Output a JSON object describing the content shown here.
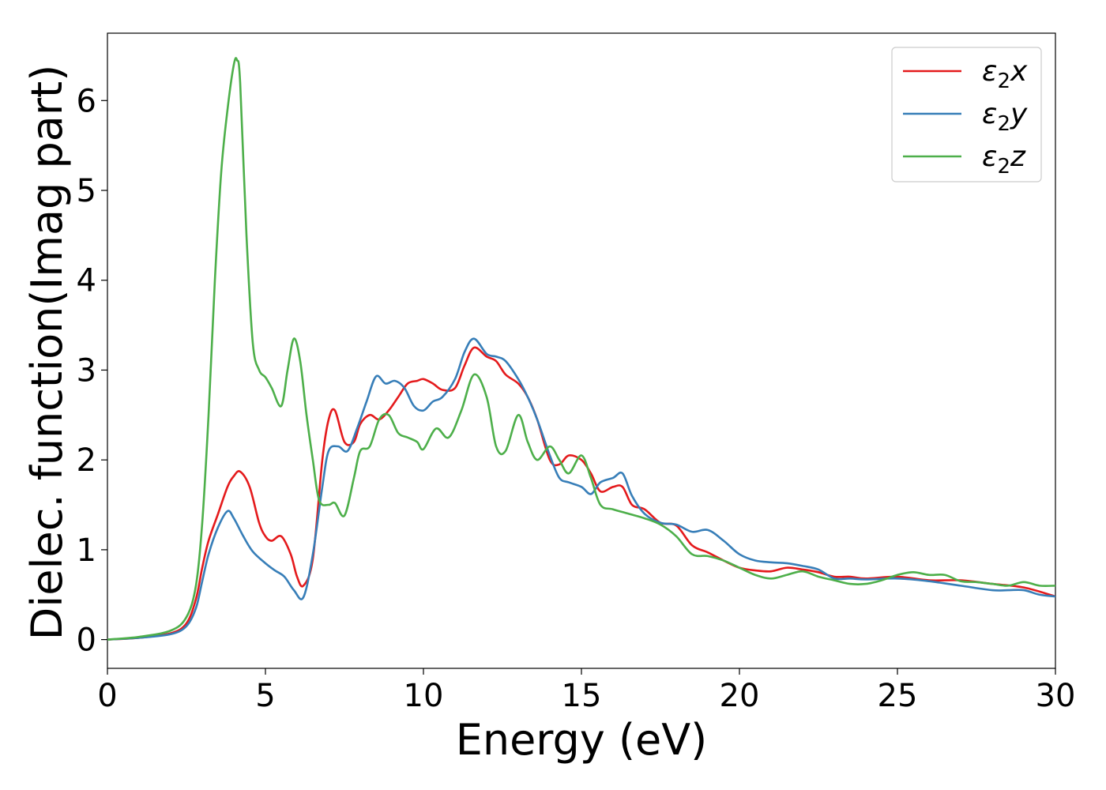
{
  "chart_data": {
    "type": "line",
    "title": "",
    "xlabel": "Energy (eV)",
    "ylabel": "Dielec. function(Imag part)",
    "xlim": [
      0,
      30
    ],
    "ylim": [
      -0.32,
      6.75
    ],
    "xticks": [
      0,
      5,
      10,
      15,
      20,
      25,
      30
    ],
    "yticks": [
      0,
      1,
      2,
      3,
      4,
      5,
      6
    ],
    "grid": false,
    "legend_position": "top-right",
    "series": [
      {
        "name": "ε2x",
        "legend_base": "ε",
        "legend_sub": "2",
        "legend_suffix": "x",
        "color": "#e41a1c",
        "x": [
          0,
          1,
          2,
          2.5,
          2.8,
          3.0,
          3.2,
          3.5,
          3.8,
          4.0,
          4.2,
          4.5,
          4.8,
          5.0,
          5.2,
          5.5,
          5.8,
          6.0,
          6.2,
          6.5,
          6.8,
          7.0,
          7.2,
          7.5,
          7.8,
          8.0,
          8.3,
          8.6,
          8.9,
          9.2,
          9.5,
          9.8,
          10.0,
          10.3,
          10.6,
          11.0,
          11.3,
          11.6,
          12.0,
          12.3,
          12.6,
          13.0,
          13.3,
          13.6,
          14.0,
          14.3,
          14.6,
          15.0,
          15.3,
          15.6,
          16.0,
          16.3,
          16.6,
          17.0,
          17.5,
          18.0,
          18.5,
          19.0,
          19.5,
          20.0,
          20.5,
          21.0,
          21.5,
          22.0,
          22.5,
          23.0,
          23.5,
          24.0,
          25.0,
          26.0,
          27.0,
          28.0,
          29.0,
          30.0
        ],
        "y": [
          0.0,
          0.02,
          0.07,
          0.18,
          0.45,
          0.8,
          1.1,
          1.4,
          1.7,
          1.82,
          1.87,
          1.7,
          1.3,
          1.15,
          1.1,
          1.15,
          0.95,
          0.7,
          0.6,
          0.9,
          2.0,
          2.45,
          2.55,
          2.2,
          2.2,
          2.4,
          2.5,
          2.45,
          2.55,
          2.7,
          2.85,
          2.88,
          2.9,
          2.85,
          2.78,
          2.8,
          3.05,
          3.25,
          3.15,
          3.1,
          2.95,
          2.85,
          2.7,
          2.45,
          2.0,
          1.95,
          2.05,
          2.0,
          1.85,
          1.65,
          1.7,
          1.7,
          1.5,
          1.45,
          1.3,
          1.27,
          1.05,
          0.97,
          0.88,
          0.8,
          0.77,
          0.76,
          0.8,
          0.78,
          0.75,
          0.7,
          0.7,
          0.68,
          0.7,
          0.66,
          0.66,
          0.62,
          0.58,
          0.48
        ]
      },
      {
        "name": "ε2y",
        "legend_base": "ε",
        "legend_sub": "2",
        "legend_suffix": "y",
        "color": "#377eb8",
        "x": [
          0,
          1,
          2,
          2.5,
          2.8,
          3.0,
          3.2,
          3.5,
          3.8,
          4.0,
          4.3,
          4.6,
          5.0,
          5.3,
          5.6,
          5.9,
          6.2,
          6.5,
          6.8,
          7.0,
          7.3,
          7.6,
          7.9,
          8.2,
          8.5,
          8.8,
          9.1,
          9.4,
          9.7,
          10.0,
          10.3,
          10.6,
          11.0,
          11.3,
          11.6,
          12.0,
          12.3,
          12.6,
          13.0,
          13.3,
          13.6,
          14.0,
          14.3,
          14.6,
          15.0,
          15.3,
          15.6,
          16.0,
          16.3,
          16.6,
          17.0,
          17.5,
          18.0,
          18.5,
          19.0,
          19.5,
          20.0,
          20.5,
          21.0,
          21.5,
          22.0,
          22.5,
          23.0,
          23.5,
          24.0,
          25.0,
          26.0,
          27.0,
          28.0,
          28.5,
          29.0,
          29.5,
          30.0
        ],
        "y": [
          0.0,
          0.02,
          0.06,
          0.15,
          0.35,
          0.65,
          0.95,
          1.25,
          1.43,
          1.35,
          1.15,
          0.98,
          0.85,
          0.77,
          0.7,
          0.55,
          0.47,
          0.95,
          1.7,
          2.1,
          2.15,
          2.1,
          2.35,
          2.65,
          2.93,
          2.85,
          2.88,
          2.8,
          2.6,
          2.55,
          2.65,
          2.7,
          2.9,
          3.2,
          3.35,
          3.18,
          3.15,
          3.1,
          2.9,
          2.7,
          2.45,
          2.05,
          1.8,
          1.75,
          1.7,
          1.62,
          1.75,
          1.8,
          1.85,
          1.6,
          1.4,
          1.3,
          1.28,
          1.2,
          1.22,
          1.1,
          0.95,
          0.88,
          0.86,
          0.85,
          0.82,
          0.78,
          0.68,
          0.68,
          0.67,
          0.68,
          0.65,
          0.6,
          0.55,
          0.55,
          0.55,
          0.5,
          0.48
        ]
      },
      {
        "name": "ε2z",
        "legend_base": "ε",
        "legend_sub": "2",
        "legend_suffix": "z",
        "color": "#4daf4a",
        "x": [
          0,
          1,
          2,
          2.5,
          2.8,
          3.0,
          3.2,
          3.4,
          3.6,
          3.8,
          4.0,
          4.1,
          4.2,
          4.4,
          4.6,
          4.8,
          5.0,
          5.2,
          5.5,
          5.7,
          5.9,
          6.1,
          6.3,
          6.5,
          6.7,
          7.0,
          7.2,
          7.5,
          7.8,
          8.0,
          8.3,
          8.6,
          8.9,
          9.2,
          9.5,
          9.8,
          10.0,
          10.4,
          10.8,
          11.2,
          11.6,
          12.0,
          12.3,
          12.6,
          13.0,
          13.3,
          13.6,
          14.0,
          14.3,
          14.6,
          15.0,
          15.3,
          15.6,
          16.0,
          16.5,
          17.0,
          17.5,
          18.0,
          18.5,
          19.0,
          19.5,
          20.0,
          20.5,
          21.0,
          21.5,
          22.0,
          22.5,
          23.0,
          23.5,
          24.0,
          24.5,
          25.0,
          25.5,
          26.0,
          26.5,
          27.0,
          27.5,
          28.0,
          28.5,
          29.0,
          29.5,
          30.0
        ],
        "y": [
          0.0,
          0.03,
          0.1,
          0.25,
          0.6,
          1.3,
          2.5,
          4.0,
          5.2,
          5.9,
          6.4,
          6.45,
          6.2,
          4.5,
          3.3,
          3.0,
          2.92,
          2.8,
          2.6,
          3.0,
          3.35,
          3.1,
          2.5,
          2.0,
          1.55,
          1.5,
          1.52,
          1.38,
          1.8,
          2.1,
          2.15,
          2.45,
          2.5,
          2.3,
          2.25,
          2.2,
          2.12,
          2.35,
          2.25,
          2.55,
          2.95,
          2.7,
          2.15,
          2.1,
          2.5,
          2.2,
          2.0,
          2.15,
          2.0,
          1.85,
          2.05,
          1.8,
          1.5,
          1.45,
          1.4,
          1.35,
          1.28,
          1.15,
          0.95,
          0.93,
          0.88,
          0.8,
          0.72,
          0.68,
          0.72,
          0.76,
          0.7,
          0.66,
          0.62,
          0.62,
          0.66,
          0.72,
          0.75,
          0.72,
          0.72,
          0.65,
          0.64,
          0.62,
          0.6,
          0.64,
          0.6,
          0.6
        ]
      }
    ]
  }
}
